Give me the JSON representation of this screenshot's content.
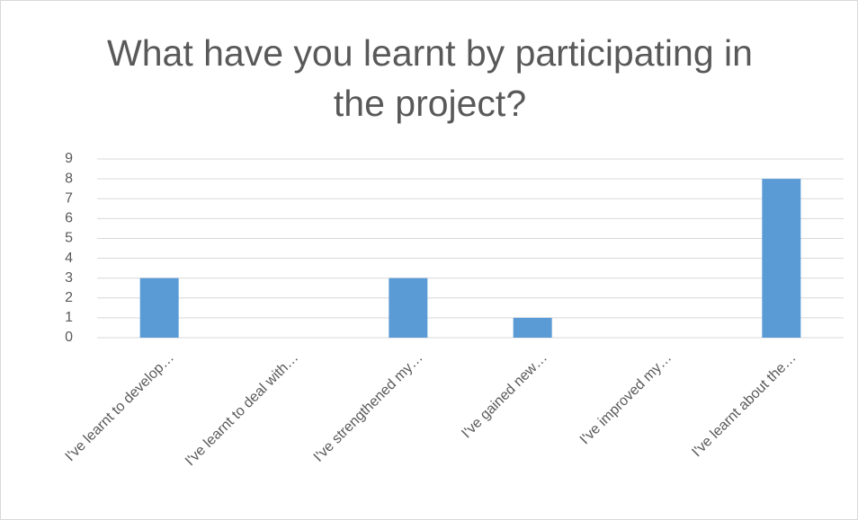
{
  "chart_data": {
    "type": "bar",
    "title": "What have you learnt by participating in the project?",
    "categories": [
      "I've learnt to develop…",
      "I've learnt to deal with…",
      "I've strengthened my…",
      "I've gained new…",
      "I've improved my…",
      "I've learnt about the…"
    ],
    "values": [
      3,
      0,
      3,
      1,
      0,
      8
    ],
    "color": "#5b9bd5",
    "ylim": [
      0,
      9
    ],
    "yticks": [
      0,
      1,
      2,
      3,
      4,
      5,
      6,
      7,
      8,
      9
    ],
    "grid": true
  }
}
